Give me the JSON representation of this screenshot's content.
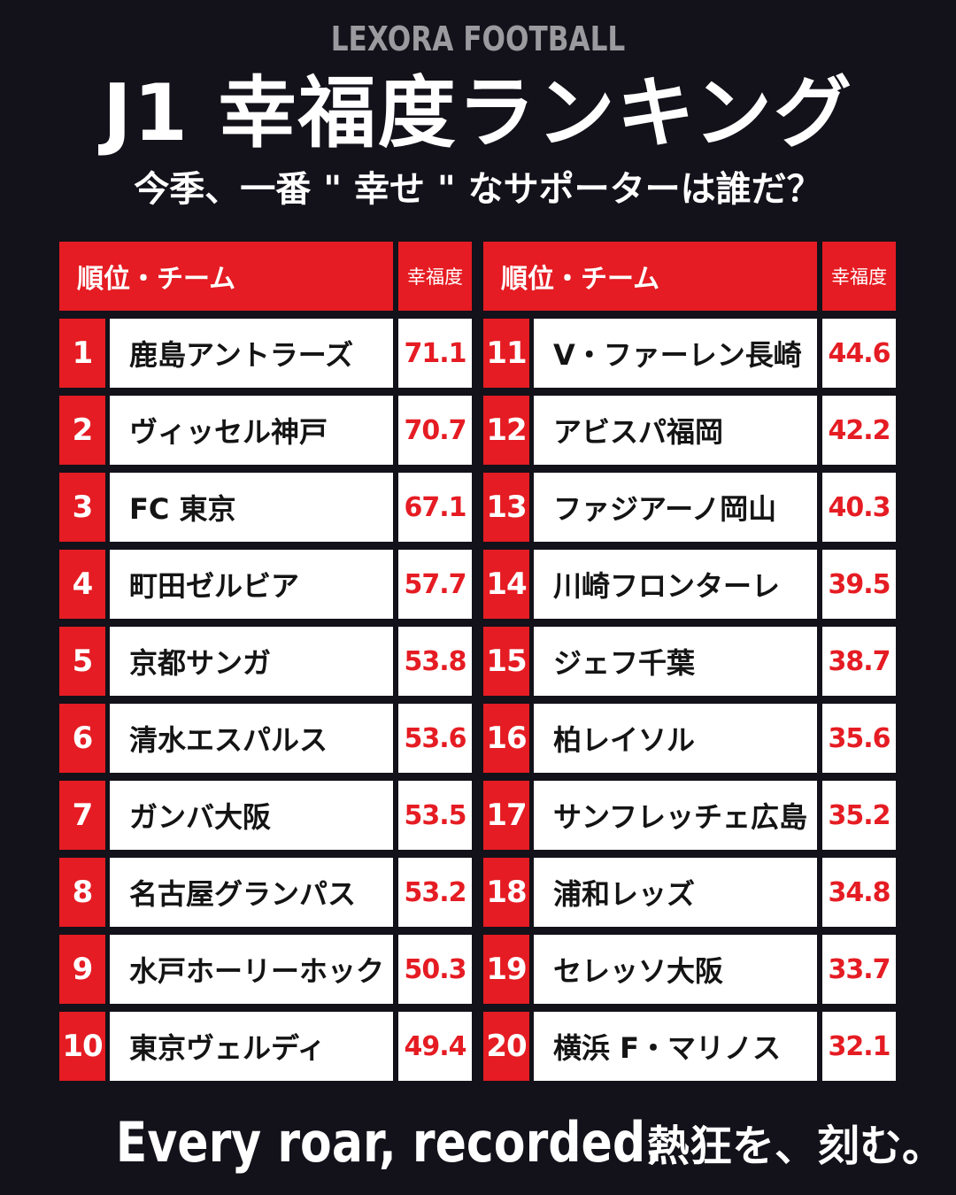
{
  "brand": "LEXORA FOOTBALL",
  "title": "J1 幸福度ランキング",
  "subtitle": "今季、一番 \" 幸せ \" なサポーターは誰だ？",
  "headers": {
    "team": "順位・チーム",
    "score": "幸福度"
  },
  "left_rows": [
    {
      "rank": "1",
      "team": "鹿島アントラーズ",
      "score": "71.1"
    },
    {
      "rank": "2",
      "team": "ヴィッセル神戸",
      "score": "70.7"
    },
    {
      "rank": "3",
      "team": "FC 東京",
      "score": "67.1"
    },
    {
      "rank": "4",
      "team": "町田ゼルビア",
      "score": "57.7"
    },
    {
      "rank": "5",
      "team": "京都サンガ",
      "score": "53.8"
    },
    {
      "rank": "6",
      "team": "清水エスパルス",
      "score": "53.6"
    },
    {
      "rank": "7",
      "team": "ガンバ大阪",
      "score": "53.5"
    },
    {
      "rank": "8",
      "team": "名古屋グランパス",
      "score": "53.2"
    },
    {
      "rank": "9",
      "team": "水戸ホーリーホック",
      "score": "50.3"
    },
    {
      "rank": "10",
      "team": "東京ヴェルディ",
      "score": "49.4"
    }
  ],
  "right_rows": [
    {
      "rank": "11",
      "team": "V・ファーレン長崎",
      "score": "44.6"
    },
    {
      "rank": "12",
      "team": "アビスパ福岡",
      "score": "42.2"
    },
    {
      "rank": "13",
      "team": "ファジアーノ岡山",
      "score": "40.3"
    },
    {
      "rank": "14",
      "team": "川崎フロンターレ",
      "score": "39.5"
    },
    {
      "rank": "15",
      "team": "ジェフ千葉",
      "score": "38.7"
    },
    {
      "rank": "16",
      "team": "柏レイソル",
      "score": "35.6"
    },
    {
      "rank": "17",
      "team": "サンフレッチェ広島",
      "score": "35.2"
    },
    {
      "rank": "18",
      "team": "浦和レッズ",
      "score": "34.8"
    },
    {
      "rank": "19",
      "team": "セレッソ大阪",
      "score": "33.7"
    },
    {
      "rank": "20",
      "team": "横浜 F・マリノス",
      "score": "32.1"
    }
  ],
  "footer": {
    "english": "Every roar, recorded.",
    "japanese": "熱狂を、刻む。"
  },
  "colors": {
    "background": "#131119",
    "accent_red": "#e51c23",
    "cell_white": "#ffffff",
    "brand_gray": "#9a9a9f"
  }
}
